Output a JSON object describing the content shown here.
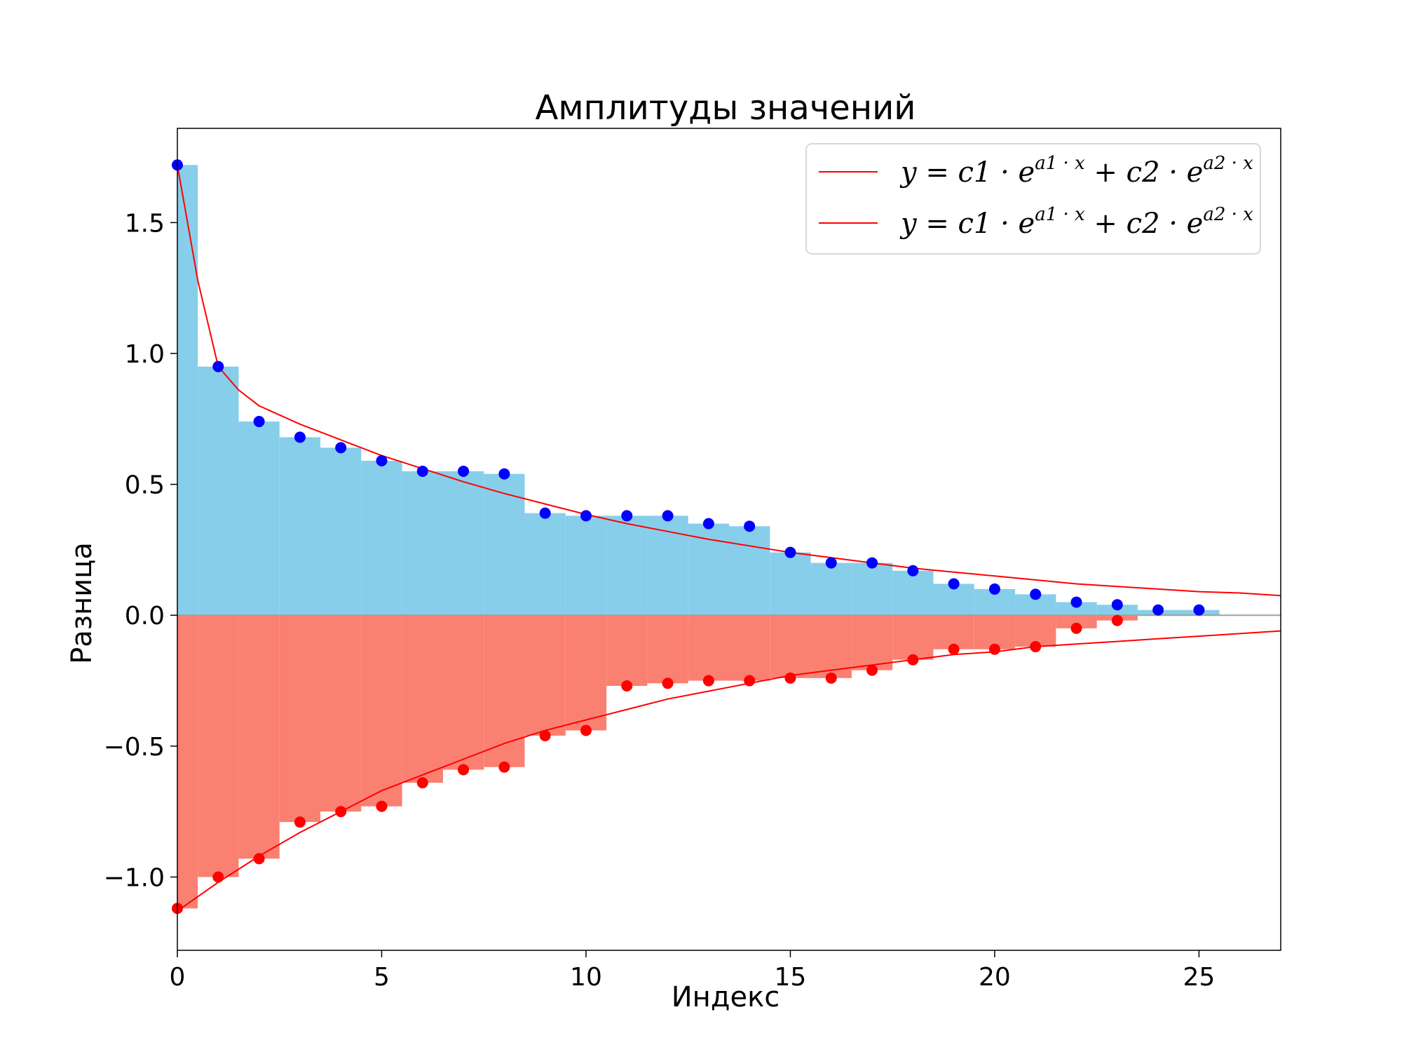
{
  "chart_data": {
    "type": "bar",
    "title": "Амплитуды значений",
    "xlabel": "Индекс",
    "ylabel": "Разница",
    "xlim": [
      0,
      27
    ],
    "ylim": [
      -1.28,
      1.86
    ],
    "xticks": [
      0,
      5,
      10,
      15,
      20,
      25
    ],
    "yticks": [
      -1.0,
      -0.5,
      0.0,
      0.5,
      1.0,
      1.5
    ],
    "xtick_labels": [
      "0",
      "5",
      "10",
      "15",
      "20",
      "25"
    ],
    "ytick_labels": [
      "−1.0",
      "−0.5",
      "0.0",
      "0.5",
      "1.0",
      "1.5"
    ],
    "grid": false,
    "legend_position": "top-right",
    "colors": {
      "positive_bars": "#87CEEB",
      "negative_bars": "#FA8072",
      "positive_points": "#0000FF",
      "negative_points": "#FF0000",
      "fit_line": "#FF0000",
      "zero_line": "#A0A0A0"
    },
    "series": [
      {
        "name": "y = c1 · e^{a1 · x} + c2 · e^{a2 · x}",
        "kind": "bars_and_points",
        "x": [
          0,
          1,
          2,
          3,
          4,
          5,
          6,
          7,
          8,
          9,
          10,
          11,
          12,
          13,
          14,
          15,
          16,
          17,
          18,
          19,
          20,
          21,
          22,
          23,
          24,
          25
        ],
        "values": [
          1.72,
          0.95,
          0.74,
          0.68,
          0.64,
          0.59,
          0.55,
          0.55,
          0.54,
          0.39,
          0.38,
          0.38,
          0.38,
          0.35,
          0.34,
          0.24,
          0.2,
          0.2,
          0.17,
          0.12,
          0.1,
          0.08,
          0.05,
          0.04,
          0.02,
          0.02
        ]
      },
      {
        "name": "y = c1 · e^{a1 · x} + c2 · e^{a2 · x}",
        "kind": "bars_and_points",
        "x": [
          0,
          1,
          2,
          3,
          4,
          5,
          6,
          7,
          8,
          9,
          10,
          11,
          12,
          13,
          14,
          15,
          16,
          17,
          18,
          19,
          20,
          21,
          22,
          23
        ],
        "values": [
          -1.12,
          -1.0,
          -0.93,
          -0.79,
          -0.75,
          -0.73,
          -0.64,
          -0.59,
          -0.58,
          -0.46,
          -0.44,
          -0.27,
          -0.26,
          -0.25,
          -0.25,
          -0.24,
          -0.24,
          -0.21,
          -0.17,
          -0.13,
          -0.13,
          -0.12,
          -0.05,
          -0.02
        ]
      }
    ],
    "fit_lines": [
      {
        "label": "y = c1 · e^{a1 · x} + c2 · e^{a2 · x}",
        "x": [
          0,
          0.5,
          1,
          1.5,
          2,
          3,
          4,
          5,
          6,
          7,
          8,
          9,
          10,
          11,
          12,
          13,
          14,
          15,
          16,
          17,
          18,
          19,
          20,
          21,
          22,
          23,
          24,
          25,
          26,
          27
        ],
        "values": [
          1.72,
          1.28,
          0.95,
          0.86,
          0.8,
          0.73,
          0.67,
          0.61,
          0.56,
          0.51,
          0.465,
          0.425,
          0.385,
          0.35,
          0.32,
          0.29,
          0.265,
          0.24,
          0.22,
          0.2,
          0.18,
          0.165,
          0.15,
          0.135,
          0.12,
          0.11,
          0.1,
          0.09,
          0.085,
          0.075
        ]
      },
      {
        "label": "y = c1 · e^{a1 · x} + c2 · e^{a2 · x}",
        "x": [
          0,
          1,
          2,
          3,
          4,
          5,
          6,
          7,
          8,
          9,
          10,
          11,
          12,
          13,
          14,
          15,
          16,
          17,
          18,
          19,
          20,
          21,
          22,
          23,
          24,
          25,
          26,
          27
        ],
        "values": [
          -1.13,
          -1.02,
          -0.92,
          -0.83,
          -0.75,
          -0.67,
          -0.61,
          -0.55,
          -0.49,
          -0.44,
          -0.4,
          -0.36,
          -0.32,
          -0.29,
          -0.26,
          -0.23,
          -0.21,
          -0.19,
          -0.17,
          -0.15,
          -0.14,
          -0.12,
          -0.11,
          -0.1,
          -0.09,
          -0.08,
          -0.07,
          -0.06
        ]
      }
    ],
    "legend": {
      "entries": [
        {
          "text_main": "y = c1 · e",
          "sup": "a1 · x",
          "text_mid": " + c2 · e",
          "sup2": "a2 · x"
        },
        {
          "text_main": "y = c1 · e",
          "sup": "a1 · x",
          "text_mid": " + c2 · e",
          "sup2": "a2 · x"
        }
      ]
    }
  }
}
